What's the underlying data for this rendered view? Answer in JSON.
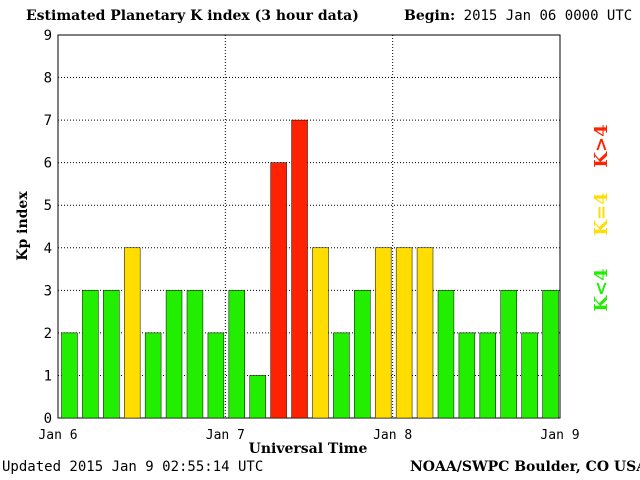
{
  "header": {
    "title": "Estimated Planetary K index (3 hour data)",
    "begin_label": "Begin:",
    "begin_value": "2015 Jan 06 0000 UTC"
  },
  "footer": {
    "updated": "Updated 2015 Jan  9 02:55:14 UTC",
    "credit": "NOAA/SWPC Boulder, CO USA"
  },
  "legend": {
    "low": "K<4",
    "mid": "K=4",
    "high": "K>4"
  },
  "colors": {
    "low": "#22ee00",
    "mid": "#ffdd00",
    "high": "#ff2200",
    "axis": "#000000",
    "grid": "#000000"
  },
  "chart_data": {
    "type": "bar",
    "xlabel": "Universal Time",
    "ylabel": "Kp index",
    "ylim": [
      0,
      9
    ],
    "yticks": [
      0,
      1,
      2,
      3,
      4,
      5,
      6,
      7,
      8,
      9
    ],
    "xticks": [
      "Jan 6",
      "Jan 7",
      "Jan 8",
      "Jan 9"
    ],
    "bars_per_day": 8,
    "grid": "dotted",
    "values": [
      2,
      3,
      3,
      4,
      2,
      3,
      3,
      2,
      3,
      1,
      6,
      7,
      4,
      2,
      3,
      4,
      4,
      4,
      3,
      2,
      2,
      3,
      2,
      3
    ]
  }
}
